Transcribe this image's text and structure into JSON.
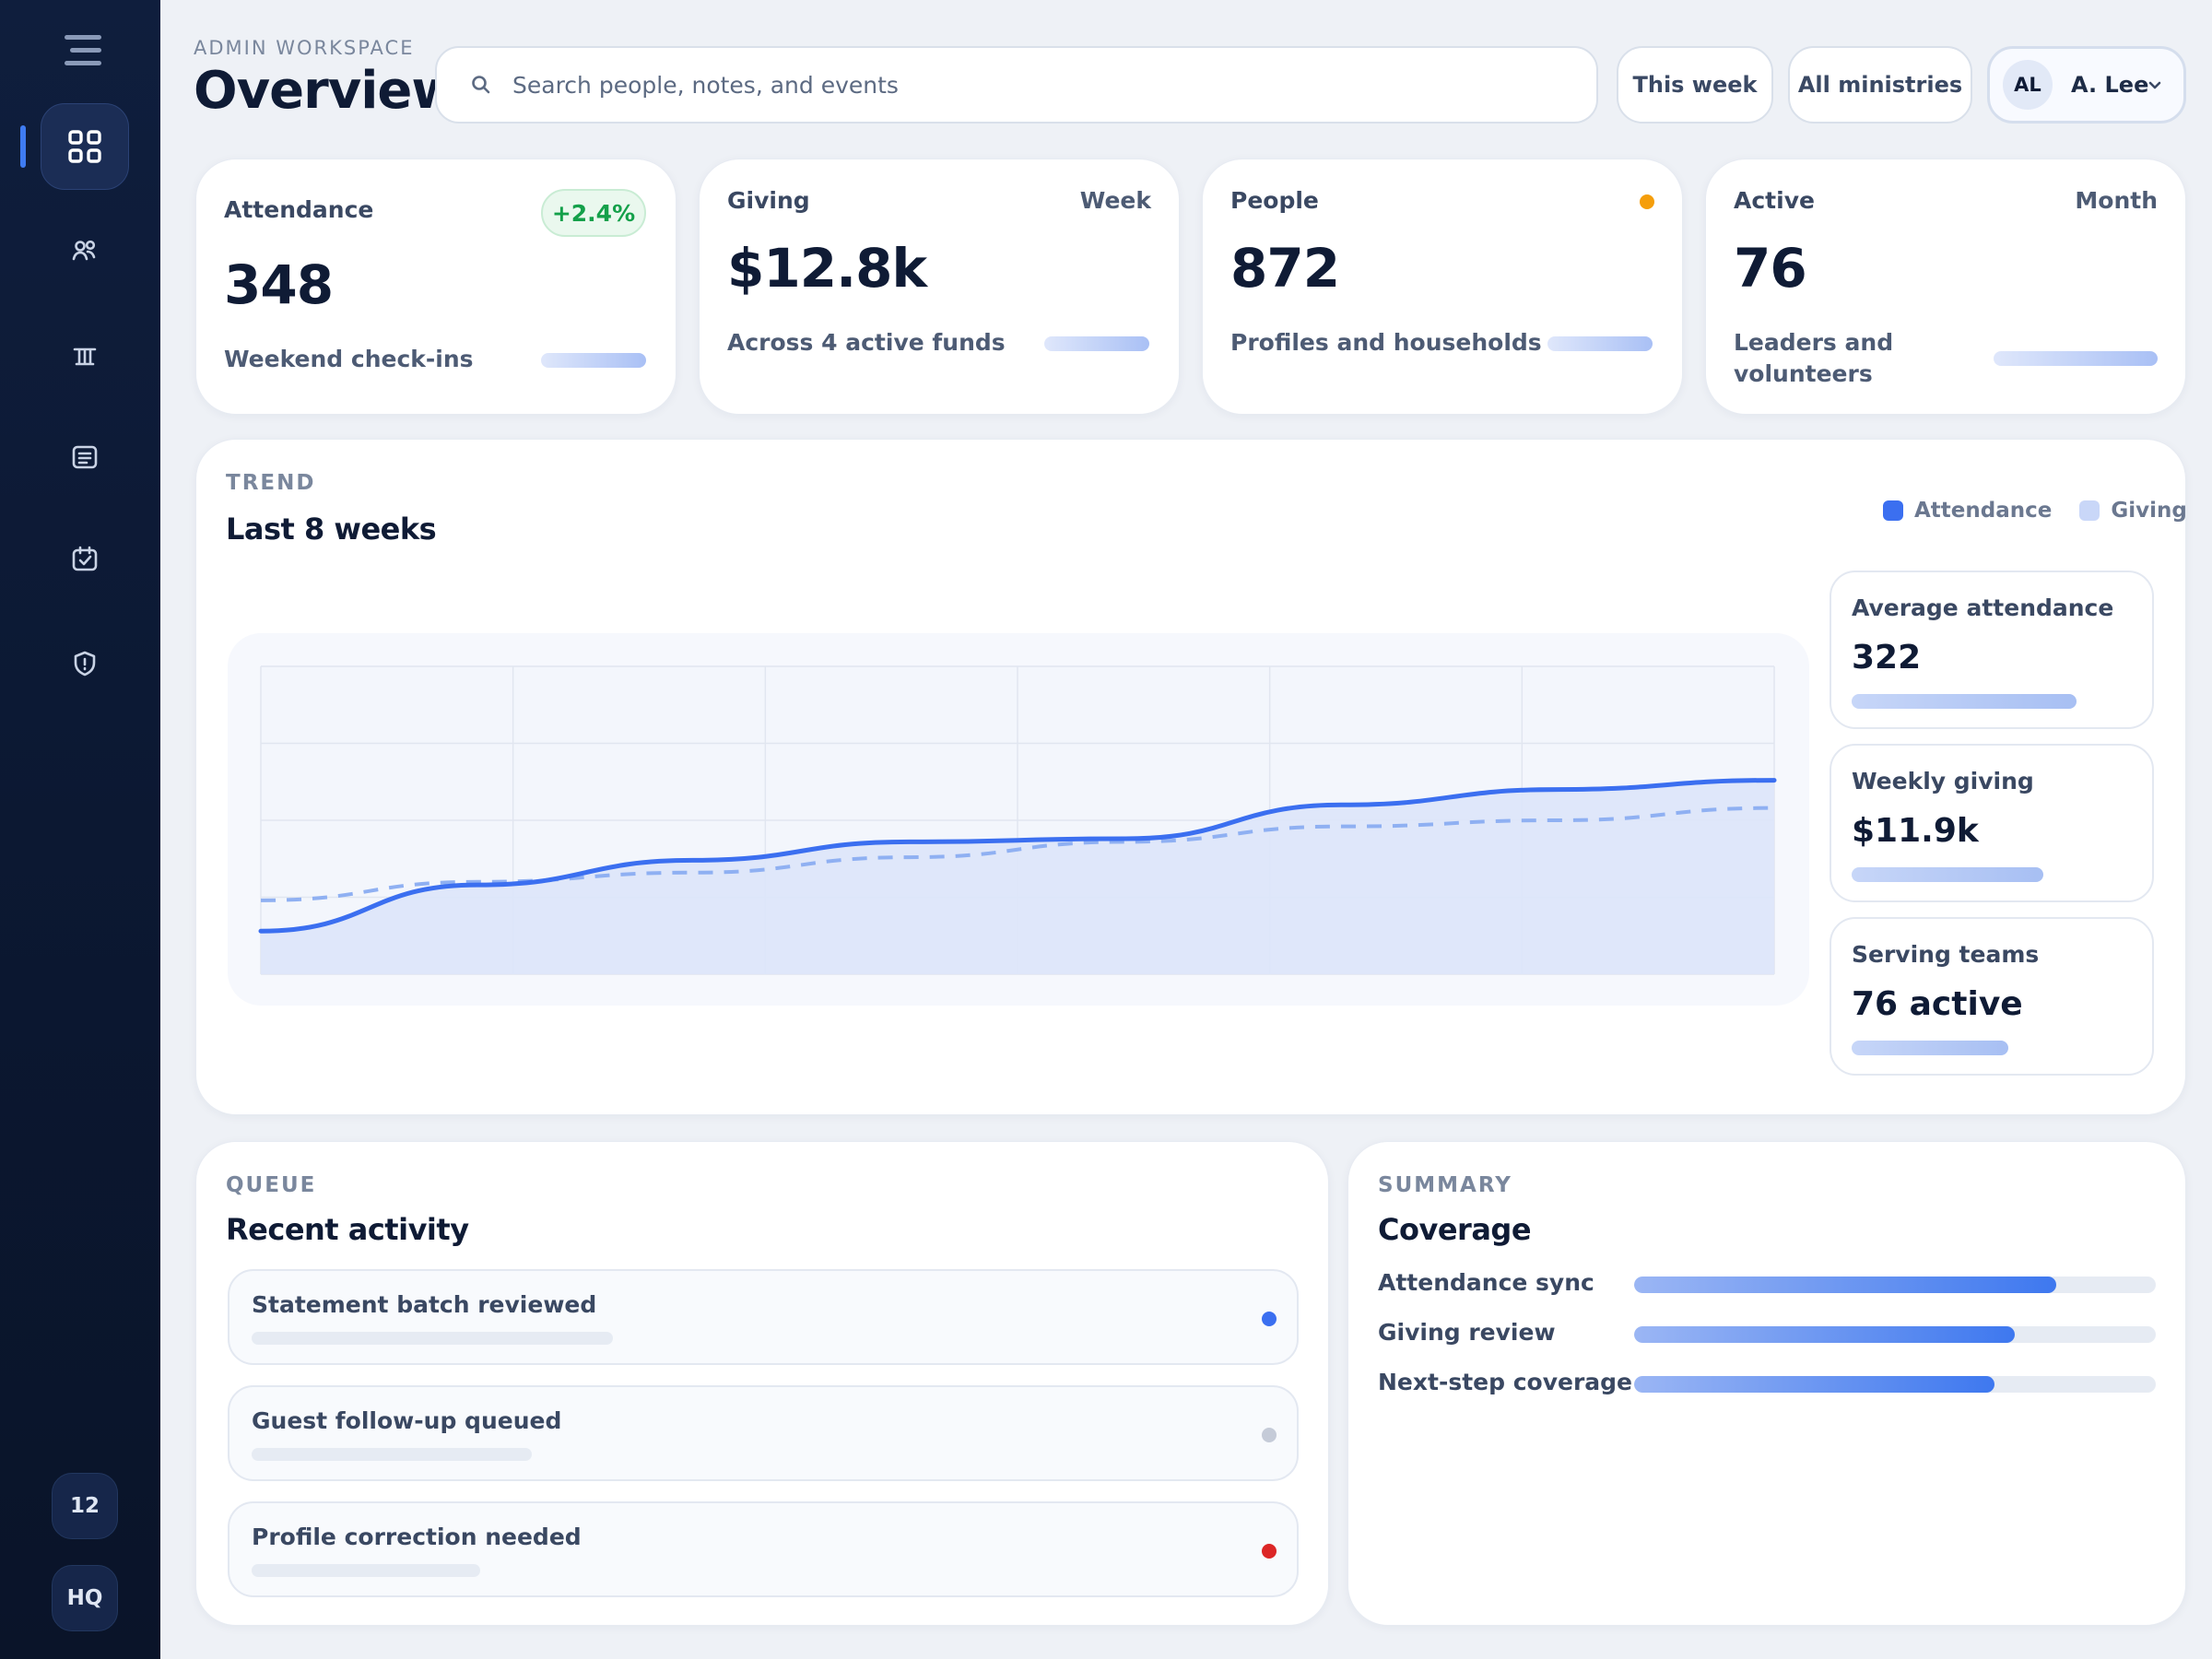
{
  "sidebar": {
    "nav": [
      {
        "icon": "dashboard-icon",
        "active": true
      },
      {
        "icon": "people-icon"
      },
      {
        "icon": "building-icon"
      },
      {
        "icon": "notes-icon"
      },
      {
        "icon": "calendar-check-icon"
      },
      {
        "icon": "shield-icon"
      }
    ],
    "badge_count": "12",
    "workspace_badge": "HQ"
  },
  "header": {
    "eyebrow": "ADMIN WORKSPACE",
    "title": "Overview",
    "search_placeholder": "Search people, notes, and events",
    "filter_period": "This week",
    "filter_scope": "All ministries",
    "user_initials": "AL",
    "user_name": "A. Lee"
  },
  "kpis": [
    {
      "label": "Attendance",
      "value": "348",
      "sub": "Weekend check-ins",
      "delta": "+2.4%",
      "delta_color": "#14a04a",
      "bar_fill": 0.65
    },
    {
      "label": "Giving",
      "value": "$12.8k",
      "sub": "Across 4 active funds",
      "corner": "Week",
      "bar_fill": 0.65
    },
    {
      "label": "People",
      "value": "872",
      "sub": "Profiles and households",
      "status_dot_color": "#f59e0b",
      "bar_fill": 0.65
    },
    {
      "label": "Active",
      "value": "76",
      "sub_line1": "Leaders and",
      "sub_line2": "volunteers",
      "corner": "Month",
      "bar_fill": 0.65
    }
  ],
  "trend": {
    "eyebrow": "TREND",
    "title": "Last 8 weeks",
    "legend": [
      {
        "name": "Attendance",
        "color": "#3b6ff0"
      },
      {
        "name": "Giving",
        "color": "#c9d7f8"
      }
    ],
    "stats": [
      {
        "label": "Average attendance",
        "value": "322",
        "bar_fill": 0.7
      },
      {
        "label": "Weekly giving",
        "value": "$11.9k",
        "bar_fill": 0.6
      },
      {
        "label": "Serving teams",
        "value": "76 active",
        "bar_fill": 0.49
      }
    ]
  },
  "chart_data": {
    "type": "line",
    "x": [
      1,
      2,
      3,
      4,
      5,
      6,
      7,
      8
    ],
    "ylim": [
      0,
      1
    ],
    "grid": true,
    "series": [
      {
        "name": "Attendance",
        "style": "solid-area",
        "values": [
          0.14,
          0.29,
          0.37,
          0.43,
          0.44,
          0.55,
          0.6,
          0.63
        ]
      },
      {
        "name": "Giving",
        "style": "dashed",
        "values": [
          0.24,
          0.3,
          0.33,
          0.38,
          0.43,
          0.48,
          0.5,
          0.54
        ]
      }
    ]
  },
  "activity": {
    "eyebrow": "QUEUE",
    "title": "Recent activity",
    "items": [
      {
        "label": "Statement batch reviewed",
        "dot_color": "#3b6ff0",
        "bar_fill": 0.34
      },
      {
        "label": "Guest follow-up queued",
        "dot_color": "#c5cbd8",
        "bar_fill": 0.26
      },
      {
        "label": "Profile correction needed",
        "dot_color": "#dc2626",
        "bar_fill": 0.21
      }
    ]
  },
  "coverage": {
    "eyebrow": "SUMMARY",
    "title": "Coverage",
    "items": [
      {
        "label": "Attendance sync",
        "value": 0.81
      },
      {
        "label": "Giving review",
        "value": 0.73
      },
      {
        "label": "Next-step coverage",
        "value": 0.69
      }
    ]
  }
}
